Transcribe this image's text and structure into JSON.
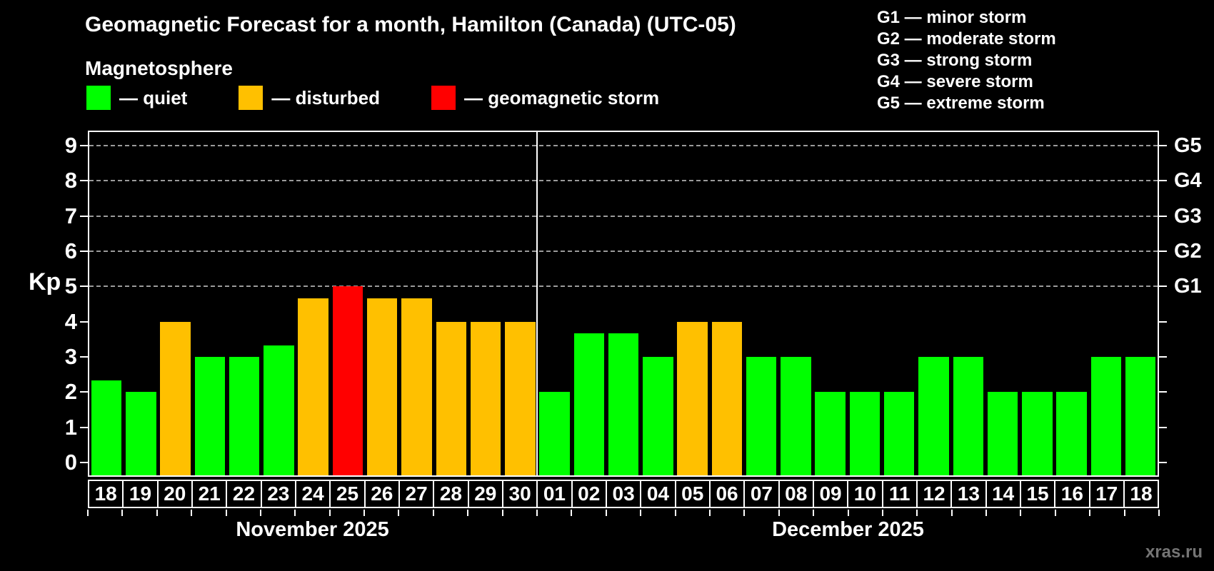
{
  "title": "Geomagnetic Forecast for a month, Hamilton (Canada) (UTC-05)",
  "subtitle": "Magnetosphere",
  "kp_axis_label": "Kp",
  "watermark": "xras.ru",
  "em_dash": "—",
  "colors": {
    "quiet": "#00ff00",
    "disturbed": "#ffc000",
    "storm": "#ff0000",
    "grid": "#9a9a9a",
    "frame": "#ffffff",
    "watermark": "#757575",
    "background": "#000000"
  },
  "legend": [
    {
      "key": "quiet",
      "label": "quiet"
    },
    {
      "key": "disturbed",
      "label": "disturbed"
    },
    {
      "key": "storm",
      "label": "geomagnetic storm"
    }
  ],
  "storm_scale_legend": [
    {
      "code": "G1",
      "desc": "minor storm"
    },
    {
      "code": "G2",
      "desc": "moderate storm"
    },
    {
      "code": "G3",
      "desc": "strong storm"
    },
    {
      "code": "G4",
      "desc": "severe storm"
    },
    {
      "code": "G5",
      "desc": "extreme storm"
    }
  ],
  "chart_data": {
    "type": "bar",
    "ylabel": "Kp",
    "yticks": [
      0,
      1,
      2,
      3,
      4,
      5,
      6,
      7,
      8,
      9
    ],
    "axis_kp_min": -0.36,
    "axis_kp_max": 9.38,
    "grid_on": "dashed lines only at G-storm levels Kp 5-9",
    "g_levels": [
      {
        "kp": 5,
        "label": "G1"
      },
      {
        "kp": 6,
        "label": "G2"
      },
      {
        "kp": 7,
        "label": "G3"
      },
      {
        "kp": 8,
        "label": "G4"
      },
      {
        "kp": 9,
        "label": "G5"
      }
    ],
    "months": [
      {
        "label": "November 2025",
        "days": [
          {
            "date": "18",
            "kp": 2.33,
            "status": "quiet"
          },
          {
            "date": "19",
            "kp": 2.0,
            "status": "quiet"
          },
          {
            "date": "20",
            "kp": 4.0,
            "status": "disturbed"
          },
          {
            "date": "21",
            "kp": 3.0,
            "status": "quiet"
          },
          {
            "date": "22",
            "kp": 3.0,
            "status": "quiet"
          },
          {
            "date": "23",
            "kp": 3.33,
            "status": "quiet"
          },
          {
            "date": "24",
            "kp": 4.67,
            "status": "disturbed"
          },
          {
            "date": "25",
            "kp": 5.0,
            "status": "storm"
          },
          {
            "date": "26",
            "kp": 4.67,
            "status": "disturbed"
          },
          {
            "date": "27",
            "kp": 4.67,
            "status": "disturbed"
          },
          {
            "date": "28",
            "kp": 4.0,
            "status": "disturbed"
          },
          {
            "date": "29",
            "kp": 4.0,
            "status": "disturbed"
          },
          {
            "date": "30",
            "kp": 4.0,
            "status": "disturbed"
          }
        ]
      },
      {
        "label": "December 2025",
        "days": [
          {
            "date": "01",
            "kp": 2.0,
            "status": "quiet"
          },
          {
            "date": "02",
            "kp": 3.67,
            "status": "quiet"
          },
          {
            "date": "03",
            "kp": 3.67,
            "status": "quiet"
          },
          {
            "date": "04",
            "kp": 3.0,
            "status": "quiet"
          },
          {
            "date": "05",
            "kp": 4.0,
            "status": "disturbed"
          },
          {
            "date": "06",
            "kp": 4.0,
            "status": "disturbed"
          },
          {
            "date": "07",
            "kp": 3.0,
            "status": "quiet"
          },
          {
            "date": "08",
            "kp": 3.0,
            "status": "quiet"
          },
          {
            "date": "09",
            "kp": 2.0,
            "status": "quiet"
          },
          {
            "date": "10",
            "kp": 2.0,
            "status": "quiet"
          },
          {
            "date": "11",
            "kp": 2.0,
            "status": "quiet"
          },
          {
            "date": "12",
            "kp": 3.0,
            "status": "quiet"
          },
          {
            "date": "13",
            "kp": 3.0,
            "status": "quiet"
          },
          {
            "date": "14",
            "kp": 2.0,
            "status": "quiet"
          },
          {
            "date": "15",
            "kp": 2.0,
            "status": "quiet"
          },
          {
            "date": "16",
            "kp": 2.0,
            "status": "quiet"
          },
          {
            "date": "17",
            "kp": 3.0,
            "status": "quiet"
          },
          {
            "date": "18",
            "kp": 3.0,
            "status": "quiet"
          }
        ]
      }
    ]
  }
}
